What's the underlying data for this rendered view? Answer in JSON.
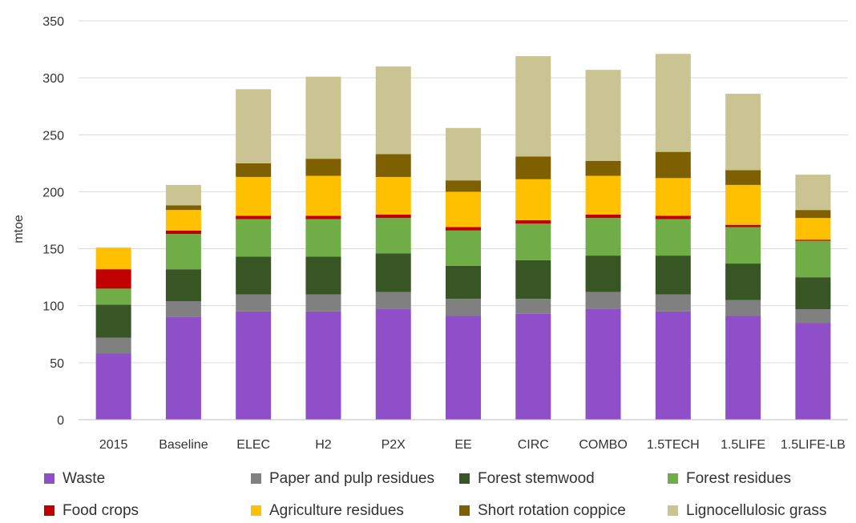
{
  "chart_data": {
    "type": "bar",
    "stacked": true,
    "title": "",
    "xlabel": "",
    "ylabel": "mtoe",
    "ylim": [
      0,
      350
    ],
    "yticks": [
      "0",
      "50",
      "100",
      "150",
      "200",
      "250",
      "300",
      "350"
    ],
    "grid": true,
    "legend_position": "bottom",
    "categories": [
      "2015",
      "Baseline",
      "ELEC",
      "H2",
      "P2X",
      "EE",
      "CIRC",
      "COMBO",
      "1.5TECH",
      "1.5LIFE",
      "1.5LIFE-LB"
    ],
    "series": [
      {
        "name": "Waste",
        "color": "#8E4FC8",
        "values": [
          58,
          90,
          95,
          95,
          97,
          91,
          93,
          97,
          95,
          91,
          85
        ]
      },
      {
        "name": "Paper and pulp residues",
        "color": "#808080",
        "values": [
          14,
          14,
          15,
          15,
          15,
          15,
          13,
          15,
          15,
          14,
          12
        ]
      },
      {
        "name": "Forest stemwood",
        "color": "#375623",
        "values": [
          29,
          28,
          33,
          33,
          34,
          29,
          34,
          32,
          34,
          32,
          28
        ]
      },
      {
        "name": "Forest residues",
        "color": "#70AD47",
        "values": [
          14,
          31,
          33,
          33,
          31,
          31,
          32,
          33,
          32,
          32,
          32
        ]
      },
      {
        "name": "Food crops",
        "color": "#C00000",
        "values": [
          17,
          3,
          3,
          3,
          3,
          3,
          3,
          3,
          3,
          2,
          1
        ]
      },
      {
        "name": "Agriculture residues",
        "color": "#FFC000",
        "values": [
          19,
          18,
          34,
          35,
          33,
          31,
          36,
          34,
          33,
          35,
          19
        ]
      },
      {
        "name": "Short rotation coppice",
        "color": "#7F6000",
        "values": [
          0,
          4,
          12,
          15,
          20,
          10,
          20,
          13,
          23,
          13,
          7
        ]
      },
      {
        "name": "Lignocellulosic grass",
        "color": "#C9C491",
        "values": [
          0,
          18,
          65,
          72,
          77,
          46,
          88,
          80,
          86,
          67,
          31
        ]
      }
    ]
  }
}
